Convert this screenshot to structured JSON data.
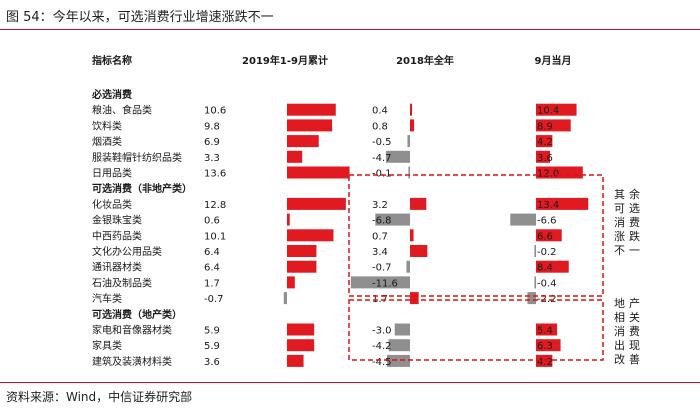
{
  "figure_title": "图 54：今年以来，可选消费行业增速涨跌不一",
  "source": "资料来源：Wind，中信证券研究部",
  "colors": {
    "positive": "#e11a22",
    "negative": "#8f8f8f",
    "dashed_box": "#d7141a",
    "rule": "#c8102e"
  },
  "chart_data": {
    "type": "bar",
    "header_label": "指标名称",
    "panels": [
      {
        "title": "2019年1-9月累计"
      },
      {
        "title": "2018年全年"
      },
      {
        "title": "9月当月"
      }
    ],
    "rows": [
      {
        "label": "必选消费",
        "section": true
      },
      {
        "label": "粮油、食品类",
        "values": [
          "10.6",
          "0.4",
          "10.4"
        ]
      },
      {
        "label": "饮料类",
        "values": [
          "9.8",
          "0.8",
          "8.9"
        ]
      },
      {
        "label": "烟酒类",
        "values": [
          "6.9",
          "-0.5",
          "4.2"
        ]
      },
      {
        "label": "服装鞋帽针纺织品类",
        "values": [
          "3.3",
          "-4.7",
          "3.6"
        ]
      },
      {
        "label": "日用品类",
        "values": [
          "13.6",
          "-0.1",
          "12.0"
        ]
      },
      {
        "label": "可选消费（非地产类）",
        "section": true
      },
      {
        "label": "化妆品类",
        "values": [
          "12.8",
          "3.2",
          "13.4"
        ]
      },
      {
        "label": "金银珠宝类",
        "values": [
          "0.6",
          "-6.8",
          "-6.6"
        ]
      },
      {
        "label": "中西药品类",
        "values": [
          "10.1",
          "0.7",
          "6.6"
        ]
      },
      {
        "label": "文化办公用品类",
        "values": [
          "6.4",
          "3.4",
          "-0.2"
        ]
      },
      {
        "label": "通讯器材类",
        "values": [
          "6.4",
          "-0.7",
          "8.4"
        ]
      },
      {
        "label": "石油及制品类",
        "values": [
          "1.7",
          "-11.6",
          "-0.4"
        ]
      },
      {
        "label": "汽车类",
        "values": [
          "-0.7",
          "1.7",
          "-2.2"
        ]
      },
      {
        "label": "可选消费（地产类）",
        "section": true
      },
      {
        "label": "家电和音像器材类",
        "values": [
          "5.9",
          "-3.0",
          "5.4"
        ]
      },
      {
        "label": "家具类",
        "values": [
          "5.9",
          "-4.2",
          "6.3"
        ]
      },
      {
        "label": "建筑及装潢材料类",
        "values": [
          "3.6",
          "-4.5",
          "4.2"
        ]
      }
    ],
    "annotations": [
      {
        "text": "其余可选消费涨跌不一"
      },
      {
        "text": "地产相关消费出现改善"
      }
    ]
  }
}
